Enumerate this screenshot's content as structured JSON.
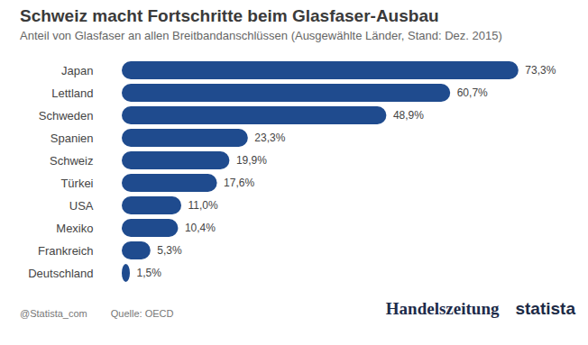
{
  "chart_data": {
    "type": "bar",
    "orientation": "horizontal",
    "title": "Schweiz macht Fortschritte beim Glasfaser-Ausbau",
    "subtitle": "Anteil von Glasfaser an allen Breitbandanschlüssen (Ausgewählte Länder, Stand: Dez. 2015)",
    "categories": [
      "Japan",
      "Lettland",
      "Schweden",
      "Spanien",
      "Schweiz",
      "Türkei",
      "USA",
      "Mexiko",
      "Frankreich",
      "Deutschland"
    ],
    "values": [
      73.3,
      60.7,
      48.9,
      23.3,
      19.9,
      17.6,
      11.0,
      10.4,
      5.3,
      1.5
    ],
    "value_labels": [
      "73,3%",
      "60,7%",
      "48,9%",
      "23,3%",
      "19,9%",
      "17,6%",
      "11,0%",
      "10,4%",
      "5,3%",
      "1,5%"
    ],
    "color": "#1f4b8e",
    "xlim": [
      0,
      80
    ],
    "data_labels": true,
    "tick_labels": "y",
    "credit": "@Statista_com",
    "source": "Quelle: OECD",
    "publisher": "Handelszeitung",
    "brand": "statista"
  }
}
